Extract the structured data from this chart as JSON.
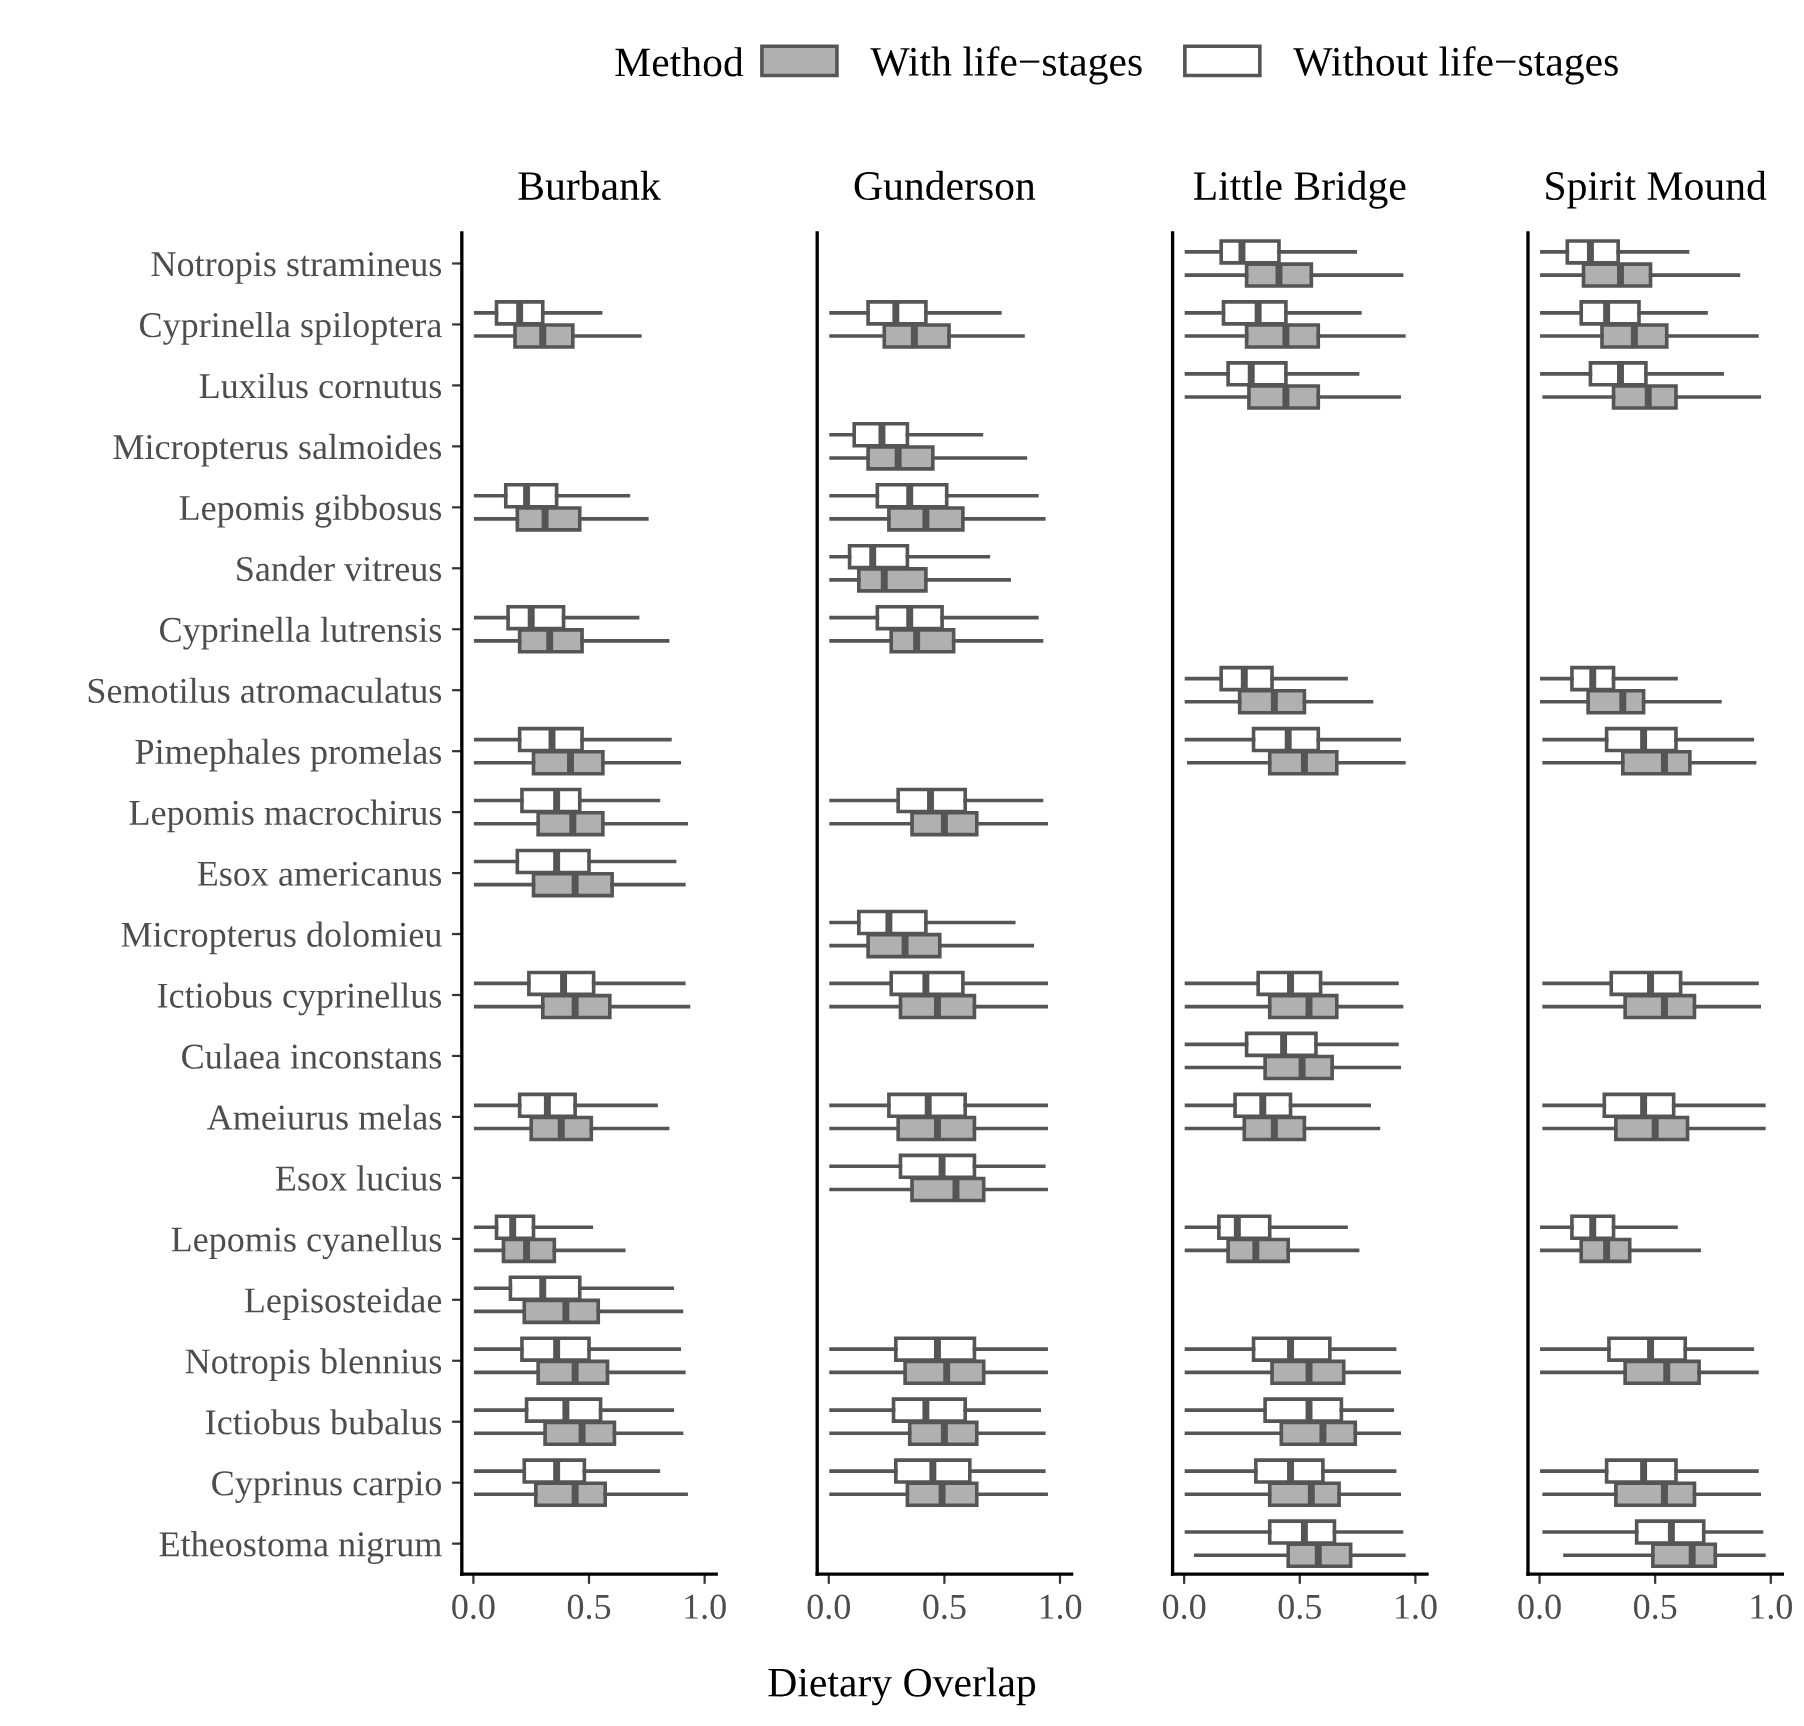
{
  "chart_data": [
    {
      "type": "box",
      "orientation": "horizontal",
      "title": "Burbank",
      "xlabel": "Dietary Overlap",
      "legend_title": "Method",
      "legend": "top",
      "xlim": [
        -0.05,
        1.05
      ],
      "xticks": [
        {
          "value": 0,
          "label": "0.0"
        },
        {
          "value": 0.5,
          "label": "0.5"
        },
        {
          "value": 1,
          "label": "1.0"
        }
      ],
      "categories": [
        "Notropis stramineus",
        "Cyprinella spiloptera",
        "Luxilus cornutus",
        "Micropterus salmoides",
        "Lepomis gibbosus",
        "Sander vitreus",
        "Cyprinella lutrensis",
        "Semotilus atromaculatus",
        "Pimephales promelas",
        "Lepomis macrochirus",
        "Esox americanus",
        "Micropterus dolomieu",
        "Ictiobus cyprinellus",
        "Culaea inconstans",
        "Ameiurus melas",
        "Esox lucius",
        "Lepomis cyanellus",
        "Lepisosteidae",
        "Notropis blennius",
        "Ictiobus bubalus",
        "Cyprinus carpio",
        "Etheostoma nigrum"
      ],
      "series": [
        {
          "name": "With life−stages",
          "color": "#b0b0b0",
          "boxes": [
            null,
            {
              "low": 0.01,
              "q1": 0.18,
              "median": 0.3,
              "q3": 0.43,
              "high": 0.72
            },
            null,
            null,
            {
              "low": 0.01,
              "q1": 0.19,
              "median": 0.31,
              "q3": 0.46,
              "high": 0.75
            },
            null,
            {
              "low": 0.01,
              "q1": 0.2,
              "median": 0.33,
              "q3": 0.47,
              "high": 0.84
            },
            null,
            {
              "low": 0.01,
              "q1": 0.26,
              "median": 0.42,
              "q3": 0.56,
              "high": 0.89
            },
            {
              "low": 0.01,
              "q1": 0.28,
              "median": 0.43,
              "q3": 0.56,
              "high": 0.92
            },
            {
              "low": 0.01,
              "q1": 0.26,
              "median": 0.44,
              "q3": 0.6,
              "high": 0.91
            },
            null,
            {
              "low": 0.01,
              "q1": 0.3,
              "median": 0.44,
              "q3": 0.59,
              "high": 0.93
            },
            null,
            {
              "low": 0.01,
              "q1": 0.25,
              "median": 0.38,
              "q3": 0.51,
              "high": 0.84
            },
            null,
            {
              "low": 0.01,
              "q1": 0.13,
              "median": 0.23,
              "q3": 0.35,
              "high": 0.65
            },
            {
              "low": 0.01,
              "q1": 0.22,
              "median": 0.4,
              "q3": 0.54,
              "high": 0.9
            },
            {
              "low": 0.01,
              "q1": 0.28,
              "median": 0.44,
              "q3": 0.58,
              "high": 0.91
            },
            {
              "low": 0.01,
              "q1": 0.31,
              "median": 0.47,
              "q3": 0.61,
              "high": 0.9
            },
            {
              "low": 0.01,
              "q1": 0.27,
              "median": 0.44,
              "q3": 0.57,
              "high": 0.92
            },
            null
          ]
        },
        {
          "name": "Without life−stages",
          "color": "#ffffff",
          "boxes": [
            null,
            {
              "low": 0.01,
              "q1": 0.1,
              "median": 0.2,
              "q3": 0.3,
              "high": 0.55
            },
            null,
            null,
            {
              "low": 0.01,
              "q1": 0.14,
              "median": 0.23,
              "q3": 0.36,
              "high": 0.67
            },
            null,
            {
              "low": 0.01,
              "q1": 0.15,
              "median": 0.25,
              "q3": 0.39,
              "high": 0.71
            },
            null,
            {
              "low": 0.01,
              "q1": 0.2,
              "median": 0.34,
              "q3": 0.47,
              "high": 0.85
            },
            {
              "low": 0.01,
              "q1": 0.21,
              "median": 0.36,
              "q3": 0.46,
              "high": 0.8
            },
            {
              "low": 0.01,
              "q1": 0.19,
              "median": 0.36,
              "q3": 0.5,
              "high": 0.87
            },
            null,
            {
              "low": 0.01,
              "q1": 0.24,
              "median": 0.39,
              "q3": 0.52,
              "high": 0.91
            },
            null,
            {
              "low": 0.01,
              "q1": 0.2,
              "median": 0.32,
              "q3": 0.44,
              "high": 0.79
            },
            null,
            {
              "low": 0.01,
              "q1": 0.1,
              "median": 0.17,
              "q3": 0.26,
              "high": 0.51
            },
            {
              "low": 0.01,
              "q1": 0.16,
              "median": 0.3,
              "q3": 0.46,
              "high": 0.86
            },
            {
              "low": 0.01,
              "q1": 0.21,
              "median": 0.36,
              "q3": 0.5,
              "high": 0.89
            },
            {
              "low": 0.01,
              "q1": 0.23,
              "median": 0.4,
              "q3": 0.55,
              "high": 0.86
            },
            {
              "low": 0.01,
              "q1": 0.22,
              "median": 0.36,
              "q3": 0.48,
              "high": 0.8
            },
            null
          ]
        }
      ]
    },
    {
      "type": "box",
      "orientation": "horizontal",
      "title": "Gunderson",
      "tick_labels": "x",
      "xlim": [
        -0.05,
        1.05
      ],
      "xticks": [
        {
          "value": 0,
          "label": "0.0"
        },
        {
          "value": 0.5,
          "label": "0.5"
        },
        {
          "value": 1,
          "label": "1.0"
        }
      ],
      "categories": [
        null,
        null,
        null,
        null,
        null,
        null,
        null,
        null,
        null,
        null,
        null,
        null,
        null,
        null,
        null,
        null,
        null,
        null,
        null,
        null,
        null,
        null
      ],
      "series": [
        {
          "color": "#b0b0b0",
          "boxes": [
            null,
            {
              "low": 0.01,
              "q1": 0.24,
              "median": 0.37,
              "q3": 0.52,
              "high": 0.84
            },
            null,
            {
              "low": 0.01,
              "q1": 0.17,
              "median": 0.3,
              "q3": 0.45,
              "high": 0.85
            },
            {
              "low": 0.01,
              "q1": 0.26,
              "median": 0.42,
              "q3": 0.58,
              "high": 0.93
            },
            {
              "low": 0.01,
              "q1": 0.13,
              "median": 0.24,
              "q3": 0.42,
              "high": 0.78
            },
            {
              "low": 0.01,
              "q1": 0.27,
              "median": 0.38,
              "q3": 0.54,
              "high": 0.92
            },
            null,
            null,
            {
              "low": 0.01,
              "q1": 0.36,
              "median": 0.5,
              "q3": 0.64,
              "high": 0.94
            },
            null,
            {
              "low": 0.01,
              "q1": 0.17,
              "median": 0.33,
              "q3": 0.48,
              "high": 0.88
            },
            {
              "low": 0.01,
              "q1": 0.31,
              "median": 0.47,
              "q3": 0.63,
              "high": 0.94
            },
            null,
            {
              "low": 0.01,
              "q1": 0.3,
              "median": 0.47,
              "q3": 0.63,
              "high": 0.94
            },
            {
              "low": 0.01,
              "q1": 0.36,
              "median": 0.55,
              "q3": 0.67,
              "high": 0.94
            },
            null,
            null,
            {
              "low": 0.01,
              "q1": 0.33,
              "median": 0.51,
              "q3": 0.67,
              "high": 0.94
            },
            {
              "low": 0.01,
              "q1": 0.35,
              "median": 0.5,
              "q3": 0.64,
              "high": 0.93
            },
            {
              "low": 0.01,
              "q1": 0.34,
              "median": 0.49,
              "q3": 0.64,
              "high": 0.94
            },
            null
          ]
        },
        {
          "color": "#ffffff",
          "boxes": [
            null,
            {
              "low": 0.01,
              "q1": 0.17,
              "median": 0.29,
              "q3": 0.42,
              "high": 0.74
            },
            null,
            {
              "low": 0.01,
              "q1": 0.11,
              "median": 0.23,
              "q3": 0.34,
              "high": 0.66
            },
            {
              "low": 0.01,
              "q1": 0.21,
              "median": 0.35,
              "q3": 0.51,
              "high": 0.9
            },
            {
              "low": 0.01,
              "q1": 0.09,
              "median": 0.19,
              "q3": 0.34,
              "high": 0.69
            },
            {
              "low": 0.01,
              "q1": 0.21,
              "median": 0.35,
              "q3": 0.49,
              "high": 0.9
            },
            null,
            null,
            {
              "low": 0.01,
              "q1": 0.3,
              "median": 0.44,
              "q3": 0.59,
              "high": 0.92
            },
            null,
            {
              "low": 0.01,
              "q1": 0.13,
              "median": 0.26,
              "q3": 0.42,
              "high": 0.8
            },
            {
              "low": 0.01,
              "q1": 0.27,
              "median": 0.42,
              "q3": 0.58,
              "high": 0.94
            },
            null,
            {
              "low": 0.01,
              "q1": 0.26,
              "median": 0.43,
              "q3": 0.59,
              "high": 0.94
            },
            {
              "low": 0.01,
              "q1": 0.31,
              "median": 0.49,
              "q3": 0.63,
              "high": 0.93
            },
            null,
            null,
            {
              "low": 0.01,
              "q1": 0.29,
              "median": 0.47,
              "q3": 0.63,
              "high": 0.94
            },
            {
              "low": 0.01,
              "q1": 0.28,
              "median": 0.42,
              "q3": 0.59,
              "high": 0.91
            },
            {
              "low": 0.01,
              "q1": 0.29,
              "median": 0.45,
              "q3": 0.61,
              "high": 0.93
            },
            null
          ]
        }
      ]
    },
    {
      "type": "box",
      "orientation": "horizontal",
      "title": "Little Bridge",
      "tick_labels": "x",
      "xlim": [
        -0.05,
        1.05
      ],
      "xticks": [
        {
          "value": 0,
          "label": "0.0"
        },
        {
          "value": 0.5,
          "label": "0.5"
        },
        {
          "value": 1,
          "label": "1.0"
        }
      ],
      "categories": [
        null,
        null,
        null,
        null,
        null,
        null,
        null,
        null,
        null,
        null,
        null,
        null,
        null,
        null,
        null,
        null,
        null,
        null,
        null,
        null,
        null,
        null
      ],
      "series": [
        {
          "color": "#b0b0b0",
          "boxes": [
            {
              "low": 0.01,
              "q1": 0.27,
              "median": 0.41,
              "q3": 0.55,
              "high": 0.94
            },
            {
              "low": 0.01,
              "q1": 0.27,
              "median": 0.44,
              "q3": 0.58,
              "high": 0.95
            },
            {
              "low": 0.01,
              "q1": 0.28,
              "median": 0.44,
              "q3": 0.58,
              "high": 0.93
            },
            null,
            null,
            null,
            null,
            {
              "low": 0.01,
              "q1": 0.24,
              "median": 0.39,
              "q3": 0.52,
              "high": 0.81
            },
            {
              "low": 0.02,
              "q1": 0.37,
              "median": 0.52,
              "q3": 0.66,
              "high": 0.95
            },
            null,
            null,
            null,
            {
              "low": 0.01,
              "q1": 0.37,
              "median": 0.54,
              "q3": 0.66,
              "high": 0.94
            },
            {
              "low": 0.01,
              "q1": 0.35,
              "median": 0.51,
              "q3": 0.64,
              "high": 0.93
            },
            {
              "low": 0.01,
              "q1": 0.26,
              "median": 0.39,
              "q3": 0.52,
              "high": 0.84
            },
            null,
            {
              "low": 0.01,
              "q1": 0.19,
              "median": 0.31,
              "q3": 0.45,
              "high": 0.75
            },
            null,
            {
              "low": 0.01,
              "q1": 0.38,
              "median": 0.54,
              "q3": 0.69,
              "high": 0.93
            },
            {
              "low": 0.01,
              "q1": 0.42,
              "median": 0.6,
              "q3": 0.74,
              "high": 0.93
            },
            {
              "low": 0.01,
              "q1": 0.37,
              "median": 0.55,
              "q3": 0.67,
              "high": 0.93
            },
            {
              "low": 0.05,
              "q1": 0.45,
              "median": 0.58,
              "q3": 0.72,
              "high": 0.95
            }
          ]
        },
        {
          "color": "#ffffff",
          "boxes": [
            {
              "low": 0.01,
              "q1": 0.16,
              "median": 0.25,
              "q3": 0.41,
              "high": 0.74
            },
            {
              "low": 0.01,
              "q1": 0.17,
              "median": 0.32,
              "q3": 0.44,
              "high": 0.76
            },
            {
              "low": 0.01,
              "q1": 0.19,
              "median": 0.29,
              "q3": 0.44,
              "high": 0.75
            },
            null,
            null,
            null,
            null,
            {
              "low": 0.01,
              "q1": 0.16,
              "median": 0.26,
              "q3": 0.38,
              "high": 0.7
            },
            {
              "low": 0.01,
              "q1": 0.3,
              "median": 0.45,
              "q3": 0.58,
              "high": 0.93
            },
            null,
            null,
            null,
            {
              "low": 0.01,
              "q1": 0.32,
              "median": 0.46,
              "q3": 0.59,
              "high": 0.92
            },
            {
              "low": 0.01,
              "q1": 0.27,
              "median": 0.43,
              "q3": 0.57,
              "high": 0.92
            },
            {
              "low": 0.01,
              "q1": 0.22,
              "median": 0.34,
              "q3": 0.46,
              "high": 0.8
            },
            null,
            {
              "low": 0.01,
              "q1": 0.15,
              "median": 0.23,
              "q3": 0.37,
              "high": 0.7
            },
            null,
            {
              "low": 0.01,
              "q1": 0.3,
              "median": 0.46,
              "q3": 0.63,
              "high": 0.91
            },
            {
              "low": 0.01,
              "q1": 0.35,
              "median": 0.54,
              "q3": 0.68,
              "high": 0.9
            },
            {
              "low": 0.01,
              "q1": 0.31,
              "median": 0.46,
              "q3": 0.6,
              "high": 0.91
            },
            {
              "low": 0.01,
              "q1": 0.37,
              "median": 0.52,
              "q3": 0.65,
              "high": 0.94
            }
          ]
        }
      ]
    },
    {
      "type": "box",
      "orientation": "horizontal",
      "title": "Spirit Mound",
      "tick_labels": "x",
      "xlim": [
        -0.05,
        1.05
      ],
      "xticks": [
        {
          "value": 0,
          "label": "0.0"
        },
        {
          "value": 0.5,
          "label": "0.5"
        },
        {
          "value": 1,
          "label": "1.0"
        }
      ],
      "categories": [
        null,
        null,
        null,
        null,
        null,
        null,
        null,
        null,
        null,
        null,
        null,
        null,
        null,
        null,
        null,
        null,
        null,
        null,
        null,
        null,
        null,
        null
      ],
      "series": [
        {
          "color": "#b0b0b0",
          "boxes": [
            {
              "low": 0.01,
              "q1": 0.19,
              "median": 0.35,
              "q3": 0.48,
              "high": 0.86
            },
            {
              "low": 0.01,
              "q1": 0.27,
              "median": 0.41,
              "q3": 0.55,
              "high": 0.94
            },
            {
              "low": 0.02,
              "q1": 0.32,
              "median": 0.47,
              "q3": 0.59,
              "high": 0.95
            },
            null,
            null,
            null,
            null,
            {
              "low": 0.01,
              "q1": 0.21,
              "median": 0.36,
              "q3": 0.45,
              "high": 0.78
            },
            {
              "low": 0.02,
              "q1": 0.36,
              "median": 0.54,
              "q3": 0.65,
              "high": 0.93
            },
            null,
            null,
            null,
            {
              "low": 0.02,
              "q1": 0.37,
              "median": 0.54,
              "q3": 0.67,
              "high": 0.95
            },
            null,
            {
              "low": 0.02,
              "q1": 0.33,
              "median": 0.5,
              "q3": 0.64,
              "high": 0.97
            },
            null,
            {
              "low": 0.01,
              "q1": 0.18,
              "median": 0.29,
              "q3": 0.39,
              "high": 0.69
            },
            null,
            {
              "low": 0.01,
              "q1": 0.37,
              "median": 0.55,
              "q3": 0.69,
              "high": 0.94
            },
            null,
            {
              "low": 0.02,
              "q1": 0.33,
              "median": 0.54,
              "q3": 0.67,
              "high": 0.95
            },
            {
              "low": 0.11,
              "q1": 0.49,
              "median": 0.66,
              "q3": 0.76,
              "high": 0.97
            }
          ]
        },
        {
          "color": "#ffffff",
          "boxes": [
            {
              "low": 0.01,
              "q1": 0.12,
              "median": 0.22,
              "q3": 0.34,
              "high": 0.64
            },
            {
              "low": 0.01,
              "q1": 0.18,
              "median": 0.29,
              "q3": 0.43,
              "high": 0.72
            },
            {
              "low": 0.01,
              "q1": 0.22,
              "median": 0.35,
              "q3": 0.46,
              "high": 0.79
            },
            null,
            null,
            null,
            null,
            {
              "low": 0.01,
              "q1": 0.14,
              "median": 0.23,
              "q3": 0.32,
              "high": 0.59
            },
            {
              "low": 0.02,
              "q1": 0.29,
              "median": 0.45,
              "q3": 0.59,
              "high": 0.92
            },
            null,
            null,
            null,
            {
              "low": 0.02,
              "q1": 0.31,
              "median": 0.48,
              "q3": 0.61,
              "high": 0.94
            },
            null,
            {
              "low": 0.02,
              "q1": 0.28,
              "median": 0.45,
              "q3": 0.58,
              "high": 0.97
            },
            null,
            {
              "low": 0.01,
              "q1": 0.14,
              "median": 0.23,
              "q3": 0.32,
              "high": 0.59
            },
            null,
            {
              "low": 0.01,
              "q1": 0.3,
              "median": 0.48,
              "q3": 0.63,
              "high": 0.92
            },
            null,
            {
              "low": 0.01,
              "q1": 0.29,
              "median": 0.45,
              "q3": 0.59,
              "high": 0.94
            },
            {
              "low": 0.02,
              "q1": 0.42,
              "median": 0.57,
              "q3": 0.71,
              "high": 0.96
            }
          ]
        }
      ]
    }
  ]
}
